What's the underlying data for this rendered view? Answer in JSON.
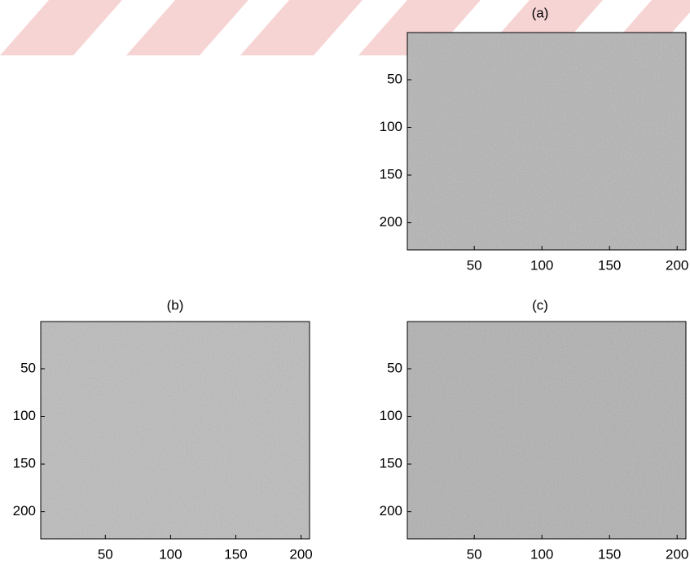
{
  "chart_data": [
    {
      "type": "image",
      "title": "(a)",
      "xlim": [
        0.5,
        206.5
      ],
      "ylim": [
        0.5,
        228.5
      ],
      "xticks": [
        50,
        100,
        150,
        200
      ],
      "yticks": [
        50,
        100,
        150,
        200
      ]
    },
    {
      "type": "image",
      "title": "(b)",
      "xlim": [
        0.5,
        206.5
      ],
      "ylim": [
        0.5,
        228.5
      ],
      "xticks": [
        50,
        100,
        150,
        200
      ],
      "yticks": [
        50,
        100,
        150,
        200
      ]
    },
    {
      "type": "image",
      "title": "(c)",
      "xlim": [
        0.5,
        206.5
      ],
      "ylim": [
        0.5,
        228.5
      ],
      "xticks": [
        50,
        100,
        150,
        200
      ],
      "yticks": [
        50,
        100,
        150,
        200
      ]
    }
  ]
}
